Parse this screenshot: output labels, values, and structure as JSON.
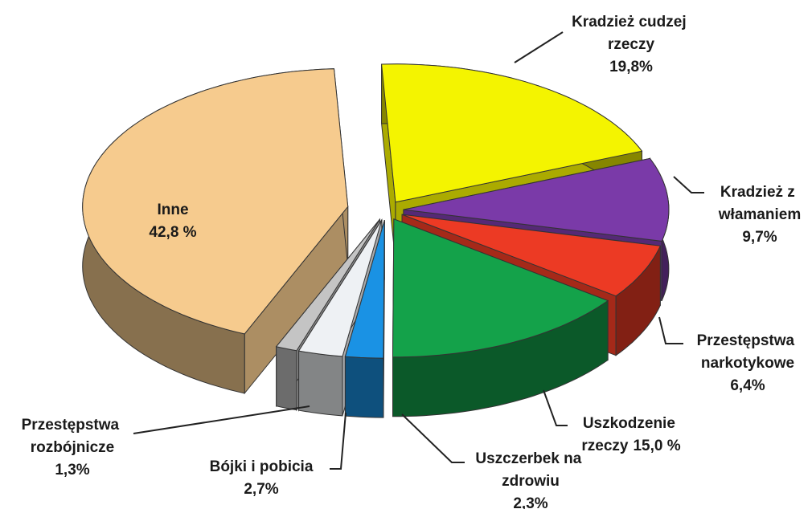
{
  "chart_data": {
    "type": "pie3d",
    "categories": [
      "Kradzież cudzej rzeczy",
      "Kradzież z włamaniem",
      "Przestępstwa narkotykowe",
      "Uszkodzenie rzeczy",
      "Uszczerbek na zdrowiu",
      "Bójki i pobicia",
      "Przestępstwa rozbójnicze",
      "Inne"
    ],
    "values": [
      19.8,
      9.7,
      6.4,
      15.0,
      2.3,
      2.7,
      1.3,
      42.8
    ],
    "value_labels": [
      "19,8%",
      "9,7%",
      "6,4%",
      "15,0 %",
      "2,3%",
      "2,7%",
      "1,3%",
      "42,8 %"
    ],
    "colors": [
      "#f4f400",
      "#7a3aa8",
      "#ec3a24",
      "#14a24a",
      "#1a92e4",
      "#eef1f4",
      "#c4c4c4",
      "#f6cb8e"
    ]
  }
}
